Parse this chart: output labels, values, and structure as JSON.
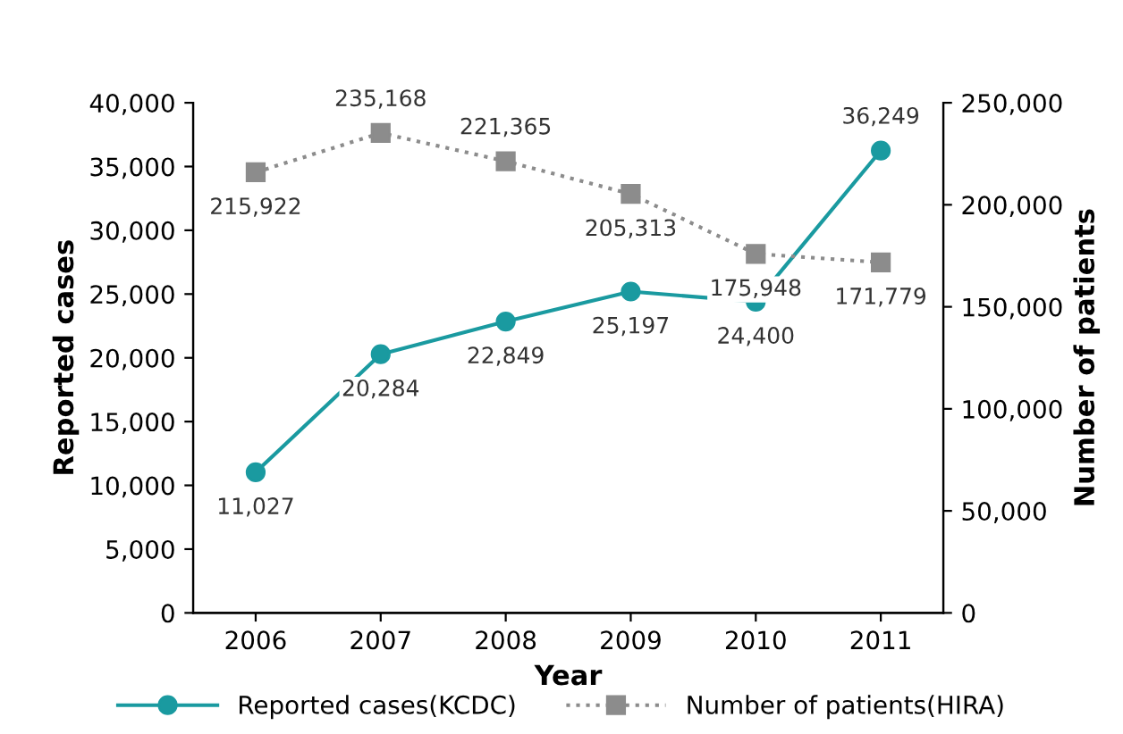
{
  "chart_data": {
    "type": "line",
    "xlabel": "Year",
    "ylabel": "Reported cases",
    "y2label": "Number of patients",
    "categories": [
      "2006",
      "2007",
      "2008",
      "2009",
      "2010",
      "2011"
    ],
    "series": [
      {
        "name": "Reported cases(KCDC)",
        "color": "#1a9aa0",
        "values": [
          11027,
          20284,
          22849,
          25197,
          24400,
          36249
        ],
        "value_labels": [
          "11,027",
          "20,284",
          "22,849",
          "25,197",
          "24,400",
          "36,249"
        ],
        "marker": "circle",
        "line_style": "solid"
      },
      {
        "name": "Number of patients(HIRA)",
        "color": "#8c8c8c",
        "axis": "y2",
        "values": [
          215922,
          235168,
          221365,
          205313,
          175948,
          171779
        ],
        "value_labels": [
          "215,922",
          "235,168",
          "221,365",
          "205,313",
          "175,948",
          "171,779"
        ],
        "marker": "square",
        "line_style": "dotted"
      }
    ],
    "ylim": [
      0,
      40000
    ],
    "yticks": [
      {
        "value": 0,
        "label": "0"
      },
      {
        "value": 5000,
        "label": "5,000"
      },
      {
        "value": 10000,
        "label": "10,000"
      },
      {
        "value": 15000,
        "label": "15,000"
      },
      {
        "value": 20000,
        "label": "20,000"
      },
      {
        "value": 25000,
        "label": "25,000"
      },
      {
        "value": 30000,
        "label": "30,000"
      },
      {
        "value": 35000,
        "label": "35,000"
      },
      {
        "value": 40000,
        "label": "40,000"
      }
    ],
    "y2lim": [
      0,
      250000
    ],
    "y2ticks": [
      {
        "value": 0,
        "label": "0"
      },
      {
        "value": 50000,
        "label": "50,000"
      },
      {
        "value": 100000,
        "label": "100,000"
      },
      {
        "value": 150000,
        "label": "150,000"
      },
      {
        "value": 200000,
        "label": "200,000"
      },
      {
        "value": 250000,
        "label": "250,000"
      }
    ],
    "grid": false,
    "legend": "bottom"
  }
}
